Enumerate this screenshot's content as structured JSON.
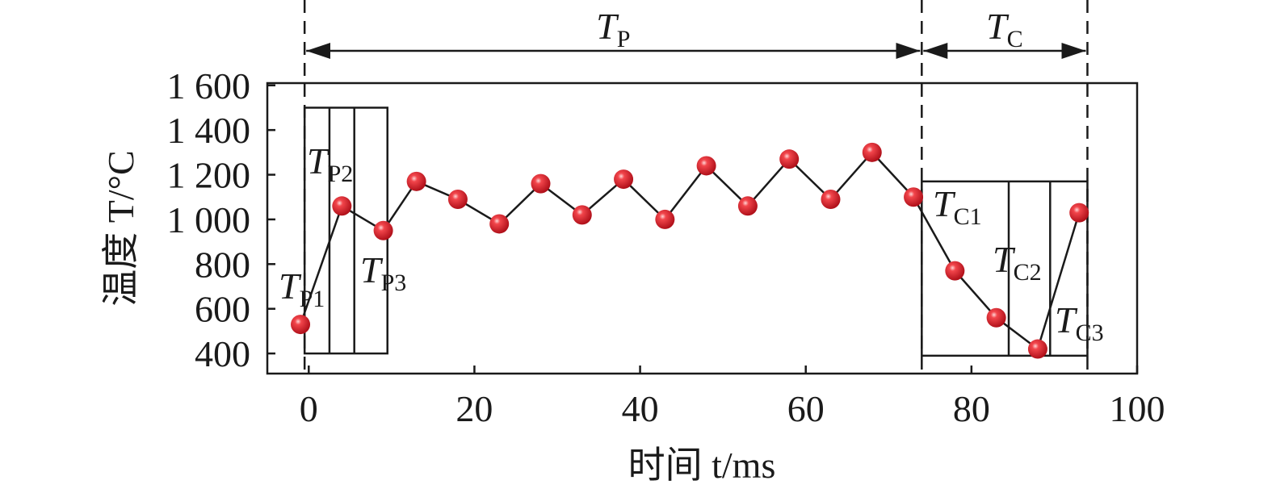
{
  "chart_data": {
    "type": "scatter",
    "title": "",
    "xlabel": "时间 t/ms",
    "ylabel": "温度 T/°C",
    "xlim": [
      -5,
      100
    ],
    "ylim": [
      310,
      1610
    ],
    "x_ticks": [
      0,
      20,
      40,
      60,
      80,
      100
    ],
    "x_tick_labels": [
      "0",
      "20",
      "40",
      "60",
      "80",
      "100"
    ],
    "y_ticks": [
      400,
      600,
      800,
      1000,
      1200,
      1400,
      1600
    ],
    "y_tick_labels": [
      "400",
      "600",
      "800",
      "1 000",
      "1 200",
      "1 400",
      "1 600"
    ],
    "grid": false,
    "marker_color": "#e8242c",
    "series": [
      {
        "x": [
          -1,
          4,
          9,
          13,
          18,
          23,
          28,
          33,
          38,
          43,
          48,
          53,
          58,
          63,
          68,
          73,
          78,
          83,
          88,
          93
        ],
        "y": [
          530,
          1060,
          950,
          1170,
          1090,
          980,
          1160,
          1020,
          1180,
          1000,
          1240,
          1060,
          1270,
          1090,
          1300,
          1100,
          770,
          560,
          420,
          1030
        ]
      }
    ],
    "periods": [
      {
        "label": "T",
        "sub": "P",
        "x_start": -0.5,
        "x_end": 74
      },
      {
        "label": "T",
        "sub": "C",
        "x_start": 74,
        "x_end": 94
      }
    ],
    "annotations": [
      {
        "label": "T",
        "sub": "P1"
      },
      {
        "label": "T",
        "sub": "P2"
      },
      {
        "label": "T",
        "sub": "P3"
      },
      {
        "label": "T",
        "sub": "C1"
      },
      {
        "label": "T",
        "sub": "C2"
      },
      {
        "label": "T",
        "sub": "C3"
      }
    ],
    "boxes": [
      {
        "x_start": -0.5,
        "x_end": 9.5,
        "y_bottom": 400,
        "y_top": 1500,
        "dividers": [
          2.5,
          5.5
        ]
      },
      {
        "x_start": 74,
        "x_end": 94,
        "y_bottom": 390,
        "y_top": 1170,
        "dividers": [
          84.5,
          89.5
        ]
      }
    ]
  }
}
